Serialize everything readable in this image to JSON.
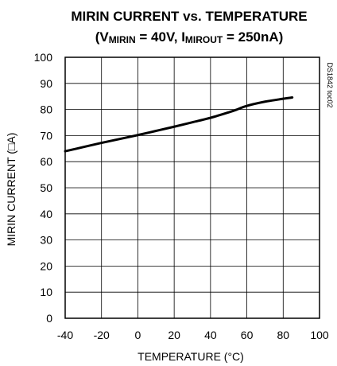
{
  "chart_data": {
    "type": "line",
    "title_line1": "MIRIN CURRENT vs. TEMPERATURE",
    "title_line2_parts": [
      "(V",
      "MIRIN",
      " = 40V, I",
      "MIROUT",
      " = 250nA)"
    ],
    "xlabel": "TEMPERATURE (°C)",
    "ylabel": "MIRIN CURRENT (□A)",
    "figure_id": "DS1842 toc02",
    "xlim": [
      -40,
      100
    ],
    "ylim": [
      0,
      100
    ],
    "x_ticks": [
      -40,
      -20,
      0,
      20,
      40,
      60,
      80,
      100
    ],
    "y_ticks": [
      0,
      10,
      20,
      30,
      40,
      50,
      60,
      70,
      80,
      90,
      100
    ],
    "grid": true,
    "series": [
      {
        "x": [
          -40,
          -30,
          -20,
          -10,
          0,
          10,
          20,
          30,
          40,
          50,
          55,
          60,
          70,
          80,
          85
        ],
        "y": [
          64.0,
          65.6,
          67.2,
          68.7,
          70.2,
          71.8,
          73.4,
          75.1,
          76.8,
          78.9,
          80.1,
          81.4,
          83.0,
          84.1,
          84.6
        ]
      }
    ]
  }
}
